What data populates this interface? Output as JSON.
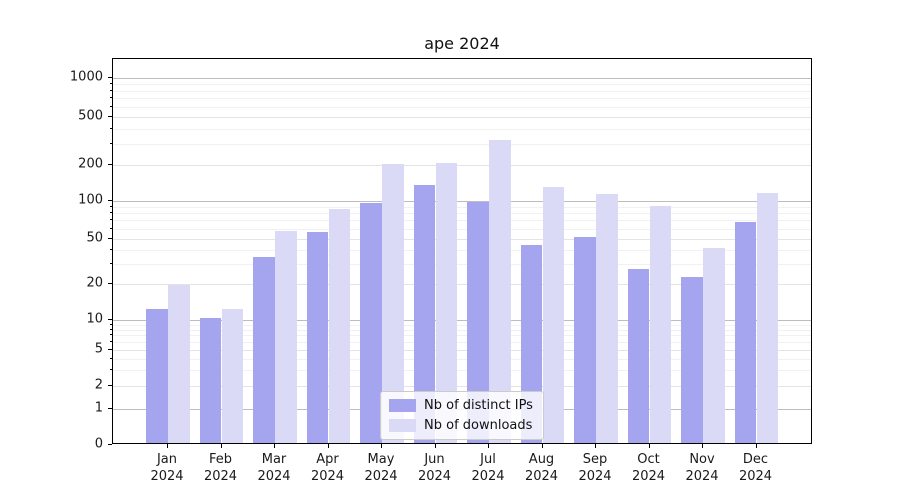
{
  "title": "ape 2024",
  "legend": {
    "items": [
      {
        "label": "Nb of distinct IPs",
        "color": "#a4a4ef"
      },
      {
        "label": "Nb of downloads",
        "color": "#dadaf7"
      }
    ]
  },
  "chart_data": {
    "type": "bar",
    "title": "ape 2024",
    "categories": [
      "Jan 2024",
      "Feb 2024",
      "Mar 2024",
      "Apr 2024",
      "May 2024",
      "Jun 2024",
      "Jul 2024",
      "Aug 2024",
      "Sep 2024",
      "Oct 2024",
      "Nov 2024",
      "Dec 2024"
    ],
    "series": [
      {
        "name": "Nb of distinct IPs",
        "color": "#a4a4ef",
        "values": [
          12,
          10,
          33,
          54,
          93,
          130,
          95,
          42,
          50,
          26,
          22,
          65
        ]
      },
      {
        "name": "Nb of downloads",
        "color": "#dadaf7",
        "values": [
          19,
          12,
          55,
          83,
          195,
          200,
          310,
          125,
          110,
          88,
          40,
          113
        ]
      }
    ],
    "xlabel": "",
    "ylabel": "",
    "yscale": "log-with-zero-baseline",
    "y_ticks": [
      0,
      1,
      2,
      5,
      10,
      20,
      50,
      100,
      200,
      500,
      1000
    ],
    "ylim": [
      0,
      1400
    ],
    "grid": true,
    "legend_position": "lower center"
  }
}
